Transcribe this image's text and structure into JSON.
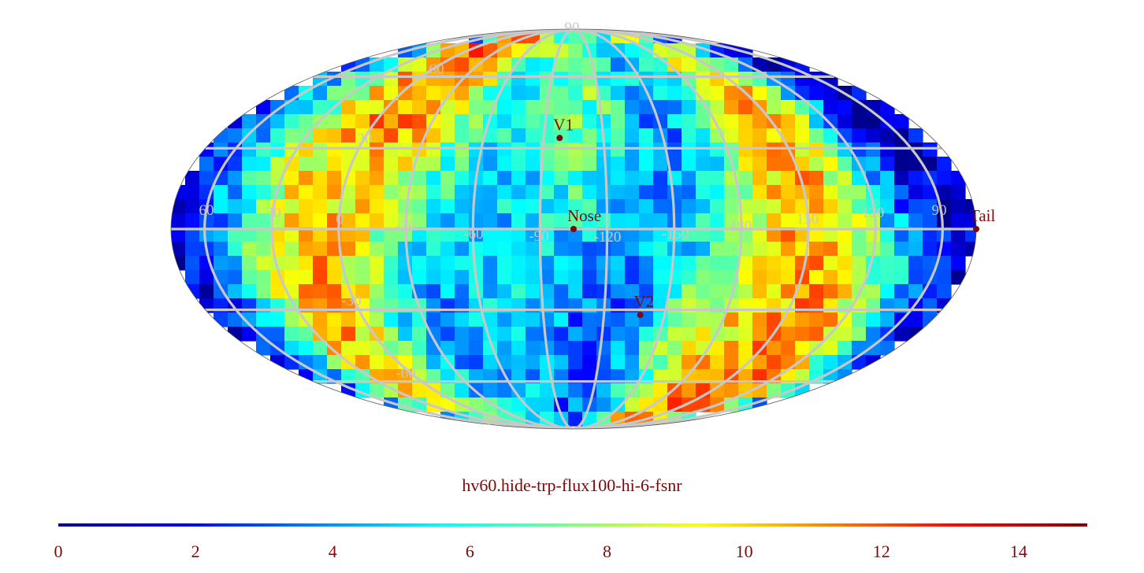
{
  "map": {
    "projection": "mollweide",
    "center_longitude_label": "-105",
    "longitude_labels": [
      "60",
      "30",
      "0",
      "-30",
      "-60",
      "-90",
      "-120",
      "-150",
      "180",
      "150",
      "120",
      "90"
    ],
    "latitude_labels": [
      "90",
      "60",
      "30",
      "-30",
      "-60",
      "-90"
    ],
    "markers": [
      {
        "name": "V1",
        "label": "V1",
        "lon": -98,
        "lat": 34
      },
      {
        "name": "Nose",
        "label": "Nose",
        "lon": -105,
        "lat": 0
      },
      {
        "name": "V2",
        "label": "V2",
        "lon": -138,
        "lat": -32
      },
      {
        "name": "Tail",
        "label": "Tail",
        "lon": 75,
        "lat": 0
      }
    ],
    "colors": {
      "grid": "#c8c8c8",
      "marker": "#7a0a0a",
      "colormap": [
        "#00008f",
        "#0000ff",
        "#0080ff",
        "#00ffff",
        "#80ff80",
        "#ffff00",
        "#ff8000",
        "#ff0000",
        "#800000"
      ]
    }
  },
  "title": "hv60.hide-trp-flux100-hi-6-fsnr",
  "colorbar": {
    "min": 0,
    "max": 15,
    "ticks": [
      "0",
      "2",
      "4",
      "6",
      "8",
      "10",
      "12",
      "14"
    ]
  }
}
